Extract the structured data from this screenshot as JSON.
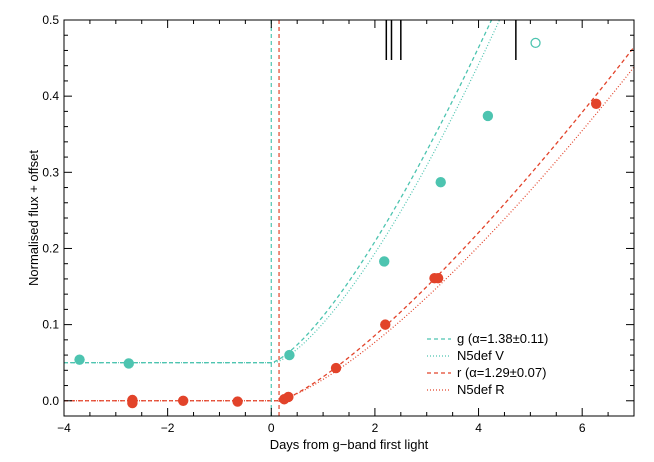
{
  "chart_data": {
    "type": "scatter",
    "title": "",
    "xlabel": "Days from g−band first light",
    "ylabel": "Normalised flux + offset",
    "xlim": [
      -4,
      7
    ],
    "ylim": [
      -0.02,
      0.5
    ],
    "grid": false,
    "legend_position": "bottom-right",
    "x_ticks": [
      -4,
      -2,
      0,
      2,
      4,
      6
    ],
    "x_tick_labels": [
      "−4",
      "−2",
      "0",
      "2",
      "4",
      "6"
    ],
    "y_ticks": [
      0.0,
      0.1,
      0.2,
      0.3,
      0.4,
      0.5
    ],
    "y_tick_labels": [
      "0.0",
      "0.1",
      "0.2",
      "0.3",
      "0.4",
      "0.5"
    ],
    "first_light_markers": [
      {
        "band": "g",
        "x": 0.0,
        "color": "#4dc4b0"
      },
      {
        "band": "r",
        "x": 0.15,
        "color": "#e2432a"
      }
    ],
    "spectra_epochs": [
      2.22,
      2.32,
      2.5,
      4.72
    ],
    "series": [
      {
        "name": "g (α=1.38±0.11)",
        "band": "g",
        "color": "#4dc4b0",
        "points": [
          {
            "x": -3.7,
            "y": 0.054
          },
          {
            "x": -2.75,
            "y": 0.049
          },
          {
            "x": 0.35,
            "y": 0.06
          },
          {
            "x": 2.18,
            "y": 0.183
          },
          {
            "x": 3.27,
            "y": 0.287
          },
          {
            "x": 4.18,
            "y": 0.374
          }
        ],
        "open_points": [
          {
            "x": 5.1,
            "y": 0.47
          }
        ],
        "fit": {
          "baseline": 0.05,
          "t0": 0.0,
          "amplitude": 0.0611,
          "alpha": 1.38
        }
      },
      {
        "name": "N5def V",
        "band": "g",
        "color": "#4dc4b0",
        "model": {
          "baseline": 0.05,
          "t0": 0.05,
          "amplitude": 0.0557,
          "alpha": 1.42
        }
      },
      {
        "name": "r (α=1.29±0.07)",
        "band": "r",
        "color": "#e2432a",
        "points": [
          {
            "x": -2.68,
            "y": 0.001
          },
          {
            "x": -2.68,
            "y": -0.003
          },
          {
            "x": -1.7,
            "y": 0.0
          },
          {
            "x": -0.65,
            "y": -0.001
          },
          {
            "x": 0.25,
            "y": 0.002
          },
          {
            "x": 0.33,
            "y": 0.005
          },
          {
            "x": 1.25,
            "y": 0.043
          },
          {
            "x": 2.2,
            "y": 0.1
          },
          {
            "x": 3.15,
            "y": 0.161
          },
          {
            "x": 3.22,
            "y": 0.161
          },
          {
            "x": 6.27,
            "y": 0.39
          }
        ],
        "fit": {
          "baseline": 0.0,
          "t0": 0.15,
          "amplitude": 0.0388,
          "alpha": 1.29
        }
      },
      {
        "name": "N5def R",
        "band": "r",
        "color": "#e2432a",
        "model": {
          "baseline": 0.0,
          "t0": 0.1,
          "amplitude": 0.0323,
          "alpha": 1.35
        }
      }
    ]
  }
}
